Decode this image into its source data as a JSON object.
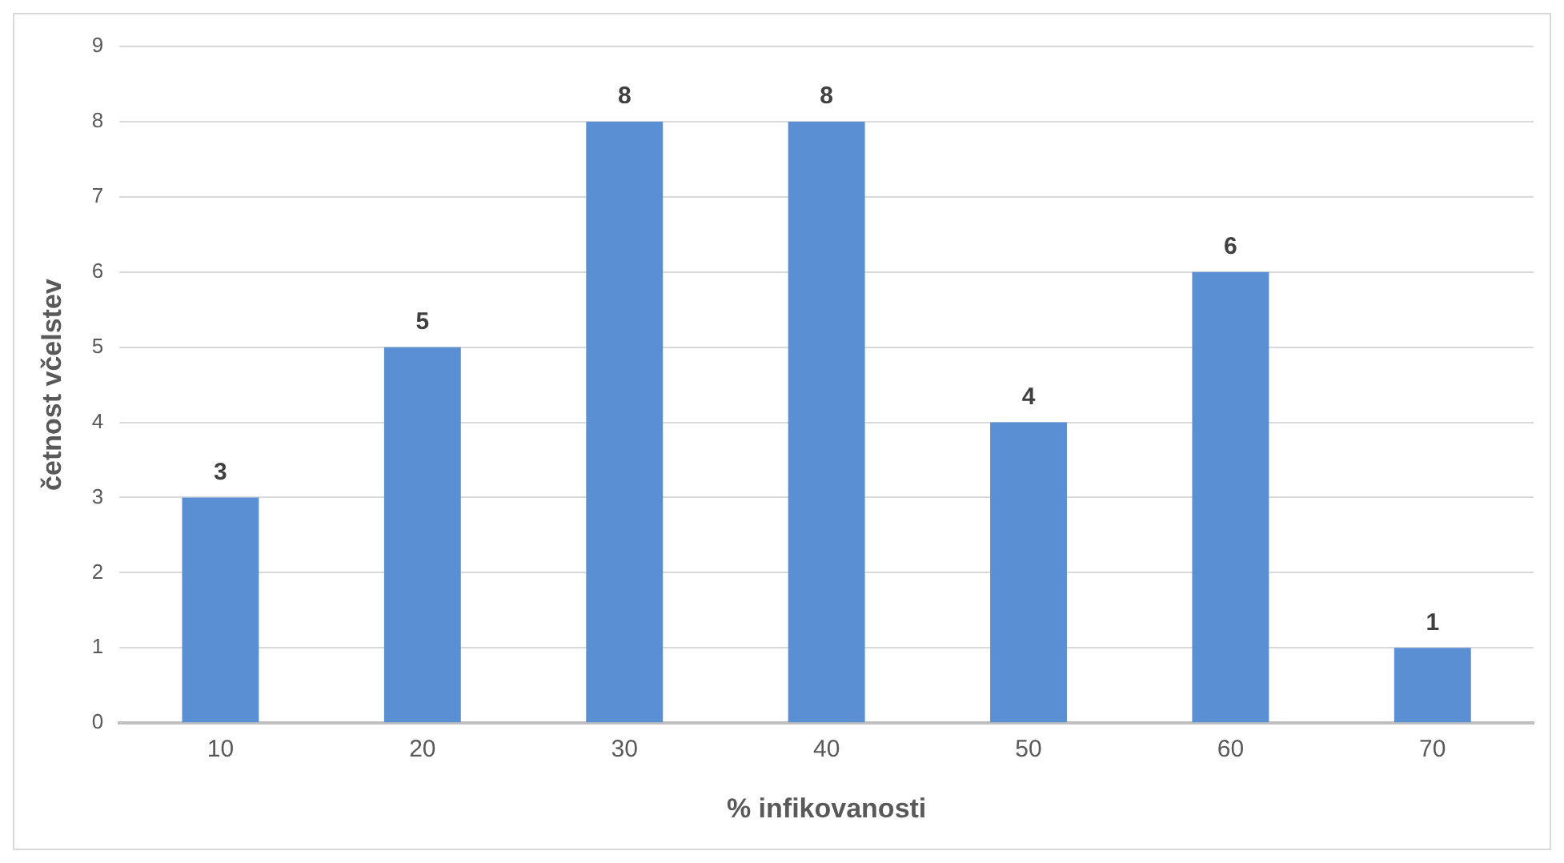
{
  "chart_data": {
    "type": "bar",
    "xlabel": "% infikovanosti",
    "ylabel": "četnost včelstev",
    "categories": [
      "10",
      "20",
      "30",
      "40",
      "50",
      "60",
      "70"
    ],
    "values": [
      3,
      5,
      8,
      8,
      4,
      6,
      1
    ],
    "color": "#5b8fd4",
    "ylim": [
      0,
      9
    ],
    "yticks": [
      0,
      1,
      2,
      3,
      4,
      5,
      6,
      7,
      8,
      9
    ],
    "grid": "y",
    "data_labels": true,
    "legend": false
  }
}
